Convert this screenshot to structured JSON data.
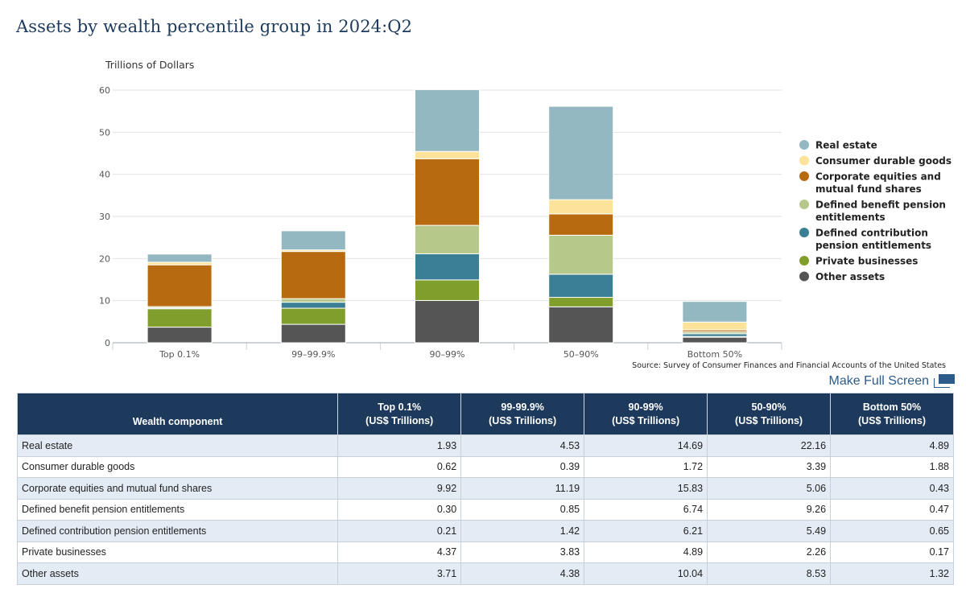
{
  "title": "Assets by wealth percentile group in 2024:Q2",
  "source": "Source: Survey of Consumer Finances and Financial Accounts of the United States",
  "fullscreen_label": "Make Full Screen",
  "chart_data": {
    "type": "bar",
    "stacked": true,
    "ylabel": "Trillions of Dollars",
    "ylim": [
      0,
      60
    ],
    "yticks": [
      0,
      10,
      20,
      30,
      40,
      50,
      60
    ],
    "grid": true,
    "legend_position": "right",
    "categories": [
      "Top 0.1%",
      "99-99.9%",
      "90-99%",
      "50-90%",
      "Bottom 50%"
    ],
    "series": [
      {
        "name": "Other assets",
        "color": "#555555",
        "values": [
          3.71,
          4.38,
          10.04,
          8.53,
          1.32
        ]
      },
      {
        "name": "Private businesses",
        "color": "#7f9e2c",
        "values": [
          4.37,
          3.83,
          4.89,
          2.26,
          0.17
        ]
      },
      {
        "name": "Defined contribution pension entitlements",
        "color": "#3b7f94",
        "values": [
          0.21,
          1.42,
          6.21,
          5.49,
          0.65
        ]
      },
      {
        "name": "Defined benefit pension entitlements",
        "color": "#b7c98a",
        "values": [
          0.3,
          0.85,
          6.74,
          9.26,
          0.47
        ]
      },
      {
        "name": "Corporate equities and mutual fund shares",
        "color": "#b86a10",
        "values": [
          9.92,
          11.19,
          15.83,
          5.06,
          0.43
        ]
      },
      {
        "name": "Consumer durable goods",
        "color": "#fde39a",
        "values": [
          0.62,
          0.39,
          1.72,
          3.39,
          1.88
        ]
      },
      {
        "name": "Real estate",
        "color": "#93b8c1",
        "values": [
          1.93,
          4.53,
          14.69,
          22.16,
          4.89
        ]
      }
    ],
    "legend": [
      {
        "lines": [
          "Real estate"
        ],
        "color": "#93b8c1"
      },
      {
        "lines": [
          "Consumer durable goods"
        ],
        "color": "#fde39a"
      },
      {
        "lines": [
          "Corporate equities and",
          "mutual fund shares"
        ],
        "color": "#b86a10"
      },
      {
        "lines": [
          "Defined benefit pension",
          "entitlements"
        ],
        "color": "#b7c98a"
      },
      {
        "lines": [
          "Defined contribution",
          "pension entitlements"
        ],
        "color": "#3b7f94"
      },
      {
        "lines": [
          "Private businesses"
        ],
        "color": "#7f9e2c"
      },
      {
        "lines": [
          "Other assets"
        ],
        "color": "#555555"
      }
    ]
  },
  "table": {
    "columns": [
      {
        "l1": "Wealth component",
        "l2": ""
      },
      {
        "l1": "Top 0.1%",
        "l2": "(US$ Trillions)"
      },
      {
        "l1": "99-99.9%",
        "l2": "(US$ Trillions)"
      },
      {
        "l1": "90-99%",
        "l2": "(US$ Trillions)"
      },
      {
        "l1": "50-90%",
        "l2": "(US$ Trillions)"
      },
      {
        "l1": "Bottom 50%",
        "l2": "(US$ Trillions)"
      }
    ],
    "rows": [
      [
        "Real estate",
        "1.93",
        "4.53",
        "14.69",
        "22.16",
        "4.89"
      ],
      [
        "Consumer durable goods",
        "0.62",
        "0.39",
        "1.72",
        "3.39",
        "1.88"
      ],
      [
        "Corporate equities and mutual fund shares",
        "9.92",
        "11.19",
        "15.83",
        "5.06",
        "0.43"
      ],
      [
        "Defined benefit pension entitlements",
        "0.30",
        "0.85",
        "6.74",
        "9.26",
        "0.47"
      ],
      [
        "Defined contribution pension entitlements",
        "0.21",
        "1.42",
        "6.21",
        "5.49",
        "0.65"
      ],
      [
        "Private businesses",
        "4.37",
        "3.83",
        "4.89",
        "2.26",
        "0.17"
      ],
      [
        "Other assets",
        "3.71",
        "4.38",
        "10.04",
        "8.53",
        "1.32"
      ]
    ]
  }
}
